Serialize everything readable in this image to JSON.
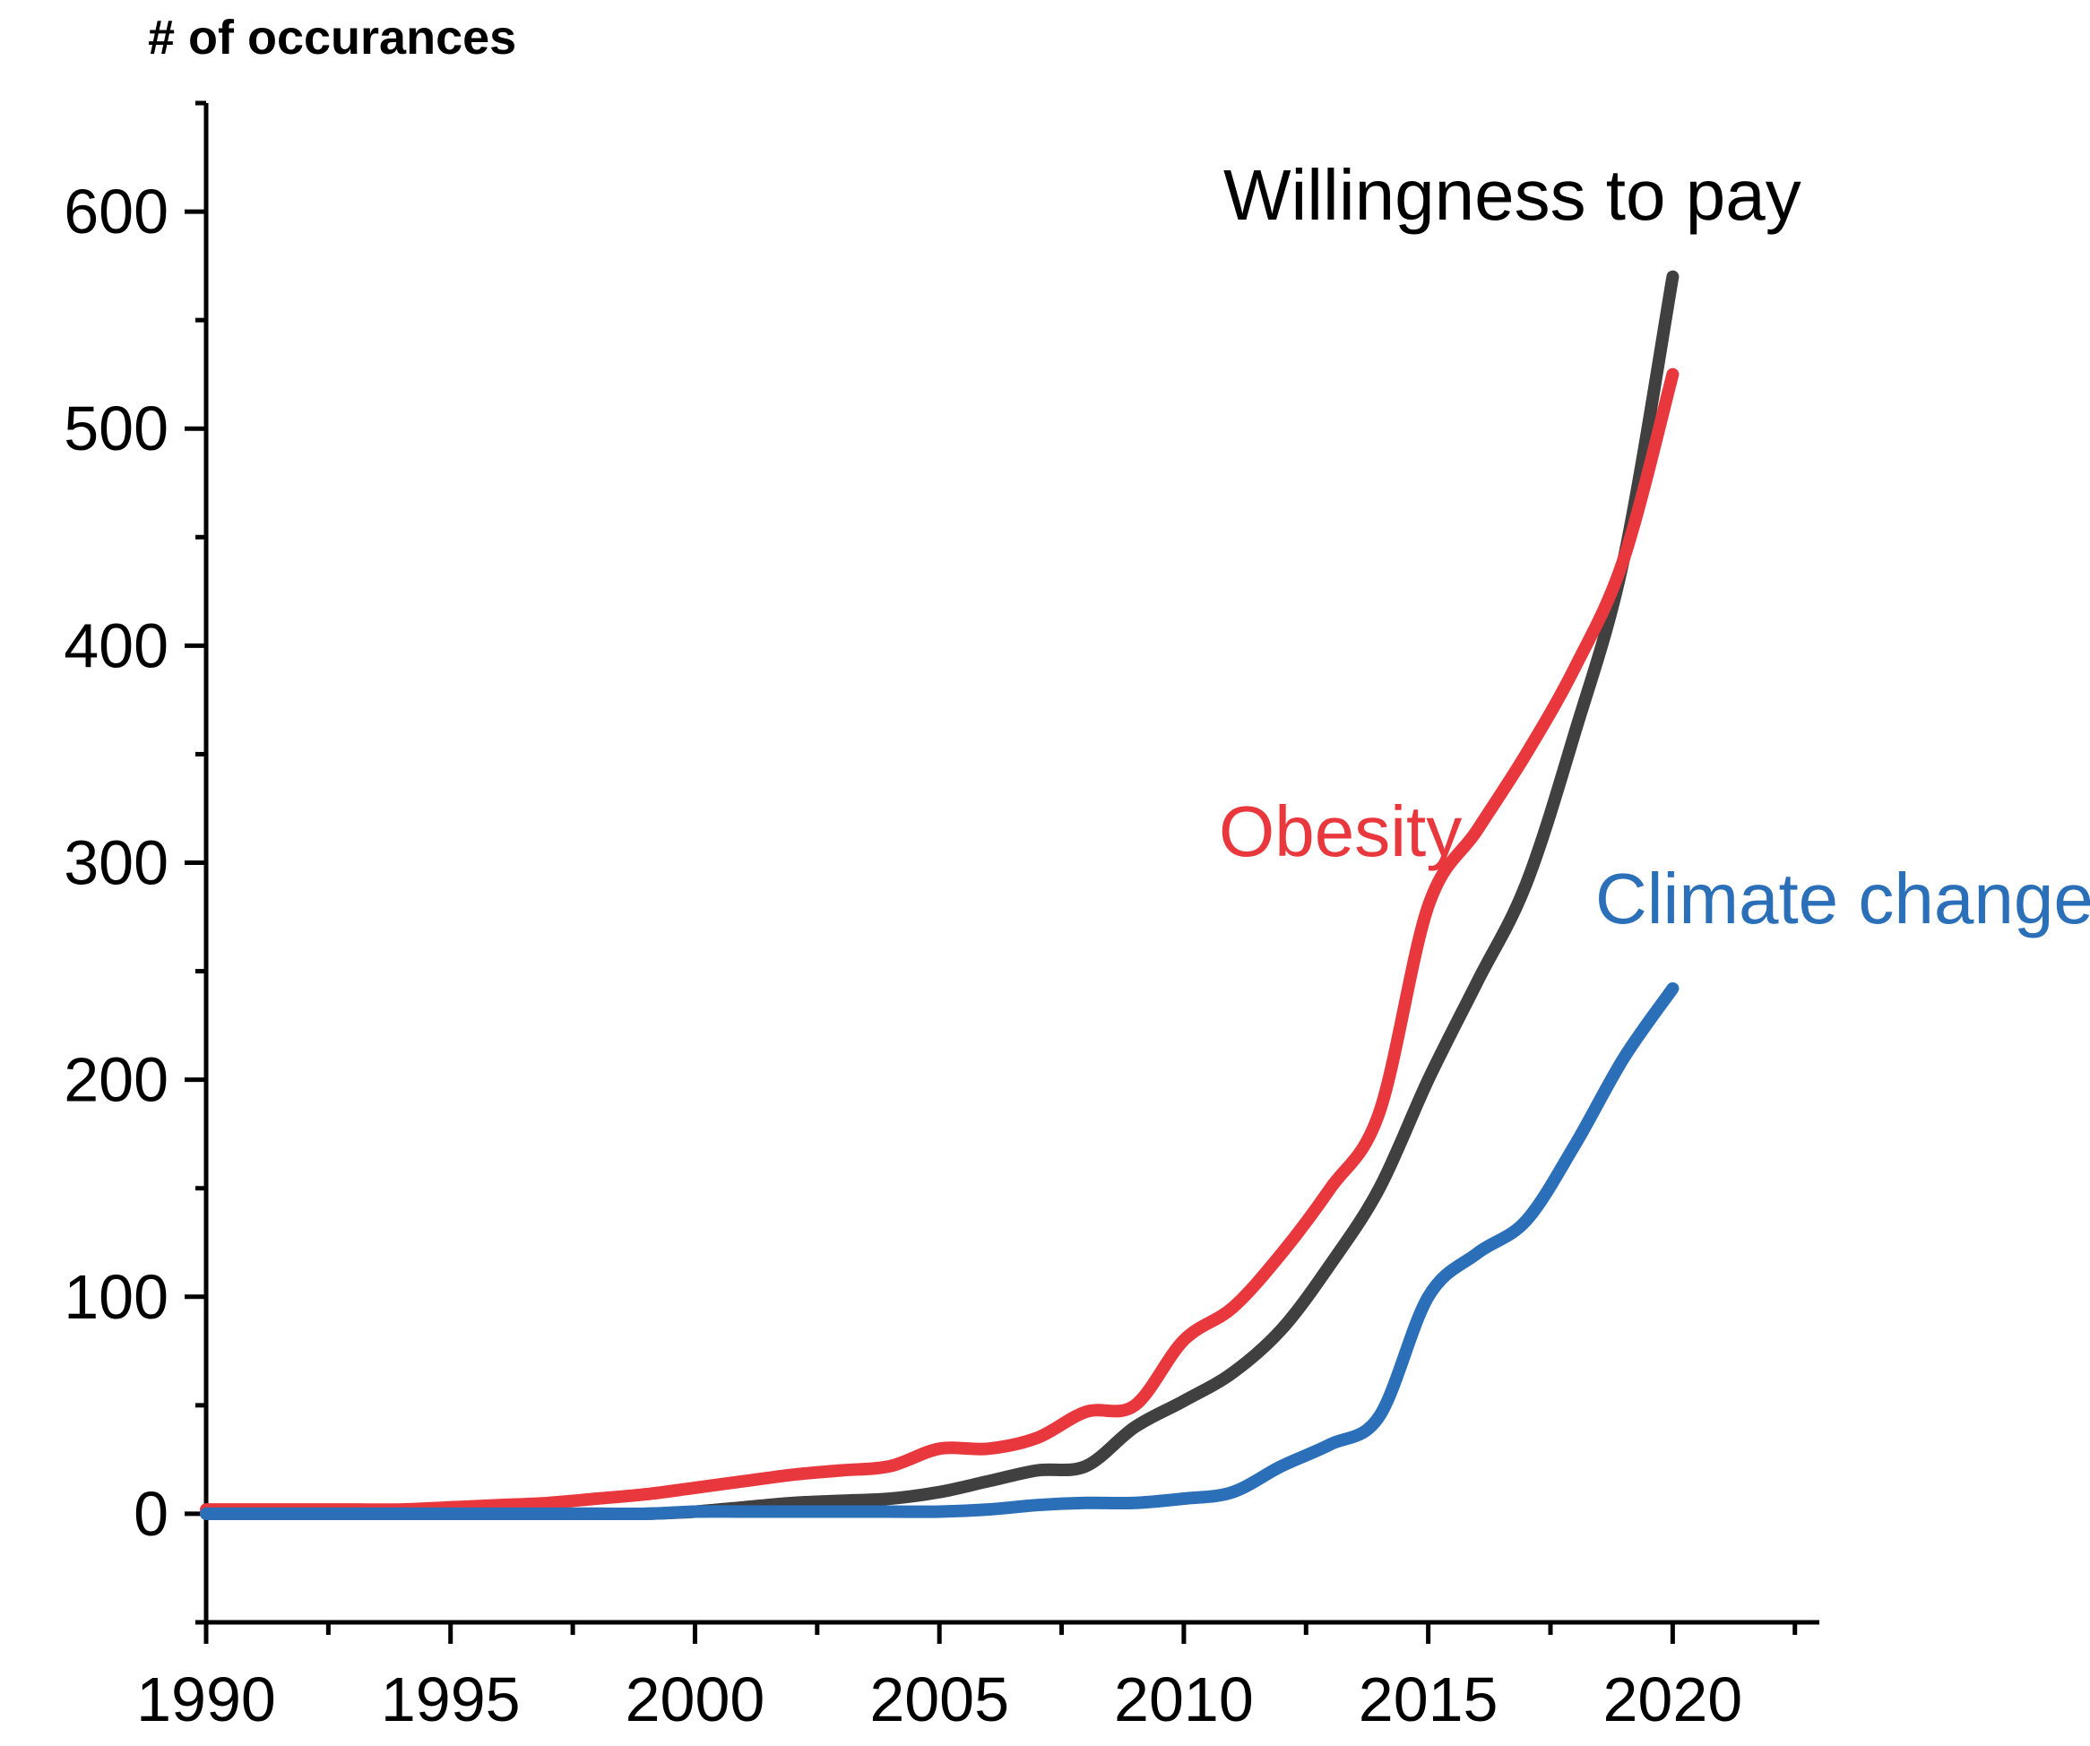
{
  "chart_data": {
    "type": "line",
    "title": "",
    "xlabel": "",
    "ylabel": "# of occurances",
    "xlim": [
      1990,
      2023
    ],
    "ylim": [
      -50,
      650
    ],
    "x_ticks": [
      1990,
      1995,
      2000,
      2005,
      2010,
      2015,
      2020
    ],
    "y_ticks": [
      0,
      100,
      200,
      300,
      400,
      500,
      600
    ],
    "grid": false,
    "x": [
      1990,
      1991,
      1992,
      1993,
      1994,
      1995,
      1996,
      1997,
      1998,
      1999,
      2000,
      2001,
      2002,
      2003,
      2004,
      2005,
      2006,
      2007,
      2008,
      2009,
      2010,
      2011,
      2012,
      2013,
      2014,
      2015,
      2016,
      2017,
      2018,
      2019,
      2020
    ],
    "series": [
      {
        "name": "Willingness to pay",
        "color": "#404040",
        "values": [
          0,
          0,
          0,
          0,
          0,
          0,
          0,
          0,
          0,
          0,
          1,
          3,
          5,
          6,
          7,
          10,
          15,
          20,
          22,
          40,
          52,
          65,
          85,
          115,
          150,
          200,
          245,
          290,
          360,
          440,
          570
        ]
      },
      {
        "name": "Obesity",
        "color": "#e8383d",
        "values": [
          2,
          2,
          2,
          2,
          2,
          3,
          4,
          5,
          7,
          9,
          12,
          15,
          18,
          20,
          22,
          30,
          30,
          35,
          47,
          50,
          80,
          95,
          120,
          150,
          185,
          280,
          315,
          350,
          390,
          440,
          525
        ]
      },
      {
        "name": "Climate change",
        "color": "#2a6fb8",
        "values": [
          0,
          0,
          0,
          0,
          0,
          0,
          0,
          0,
          0,
          0,
          1,
          1,
          1,
          1,
          1,
          1,
          2,
          4,
          5,
          5,
          7,
          10,
          22,
          32,
          45,
          100,
          120,
          135,
          170,
          210,
          242
        ]
      }
    ]
  }
}
